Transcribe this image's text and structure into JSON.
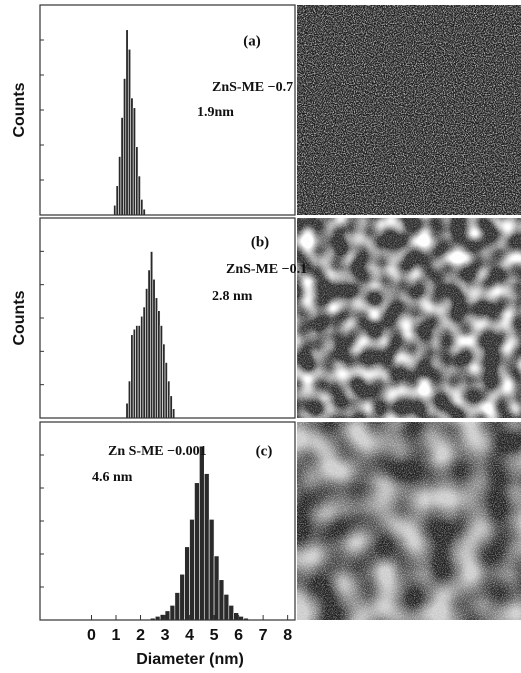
{
  "chart_data": [
    {
      "type": "histogram",
      "panel_label": "(a)",
      "annotations": [
        "ZnS-ME −0.7",
        "1.9nm"
      ],
      "ylabel": "Counts",
      "bins": [
        0.9,
        1.0,
        1.1,
        1.2,
        1.3,
        1.4,
        1.5,
        1.6,
        1.7,
        1.8,
        1.9,
        2.0,
        2.1,
        2.2
      ],
      "values": [
        5,
        15,
        30,
        50,
        70,
        95,
        85,
        60,
        55,
        35,
        20,
        8,
        3
      ],
      "color": "#2a2a2a",
      "xlim": [
        -2.1,
        8.3
      ],
      "ylim": [
        0,
        100
      ]
    },
    {
      "type": "histogram",
      "panel_label": "(b)",
      "annotations": [
        "ZnS-ME −0.1",
        "2.8 nm"
      ],
      "ylabel": "Counts",
      "bins": [
        1.4,
        1.5,
        1.6,
        1.7,
        1.8,
        1.9,
        2.0,
        2.1,
        2.2,
        2.3,
        2.4,
        2.5,
        2.6,
        2.7,
        2.8,
        2.9,
        3.0,
        3.1,
        3.2,
        3.3,
        3.4
      ],
      "values": [
        8,
        20,
        45,
        48,
        50,
        50,
        55,
        60,
        70,
        80,
        90,
        75,
        65,
        58,
        50,
        40,
        30,
        20,
        12,
        5
      ],
      "color": "#2a2a2a",
      "xlim": [
        -2.1,
        8.3
      ],
      "ylim": [
        0,
        100
      ]
    },
    {
      "type": "histogram",
      "panel_label": "(c)",
      "annotations": [
        "Zn S-ME −0.001",
        "4.6 nm"
      ],
      "xlabel": "Diameter (nm)",
      "bins": [
        2.4,
        2.6,
        2.8,
        3.0,
        3.2,
        3.4,
        3.6,
        3.8,
        4.0,
        4.2,
        4.4,
        4.6,
        4.8,
        5.0,
        5.2,
        5.4,
        5.6,
        5.8,
        6.0,
        6.2,
        6.4
      ],
      "values": [
        1,
        2,
        3,
        5,
        8,
        15,
        25,
        40,
        55,
        75,
        95,
        80,
        55,
        35,
        22,
        14,
        8,
        4,
        2,
        1
      ],
      "color": "#2a2a2a",
      "xlim": [
        -2.1,
        8.3
      ],
      "ylim": [
        0,
        100
      ],
      "xticks": [
        0,
        1,
        2,
        3,
        4,
        5,
        6,
        7,
        8
      ]
    }
  ]
}
